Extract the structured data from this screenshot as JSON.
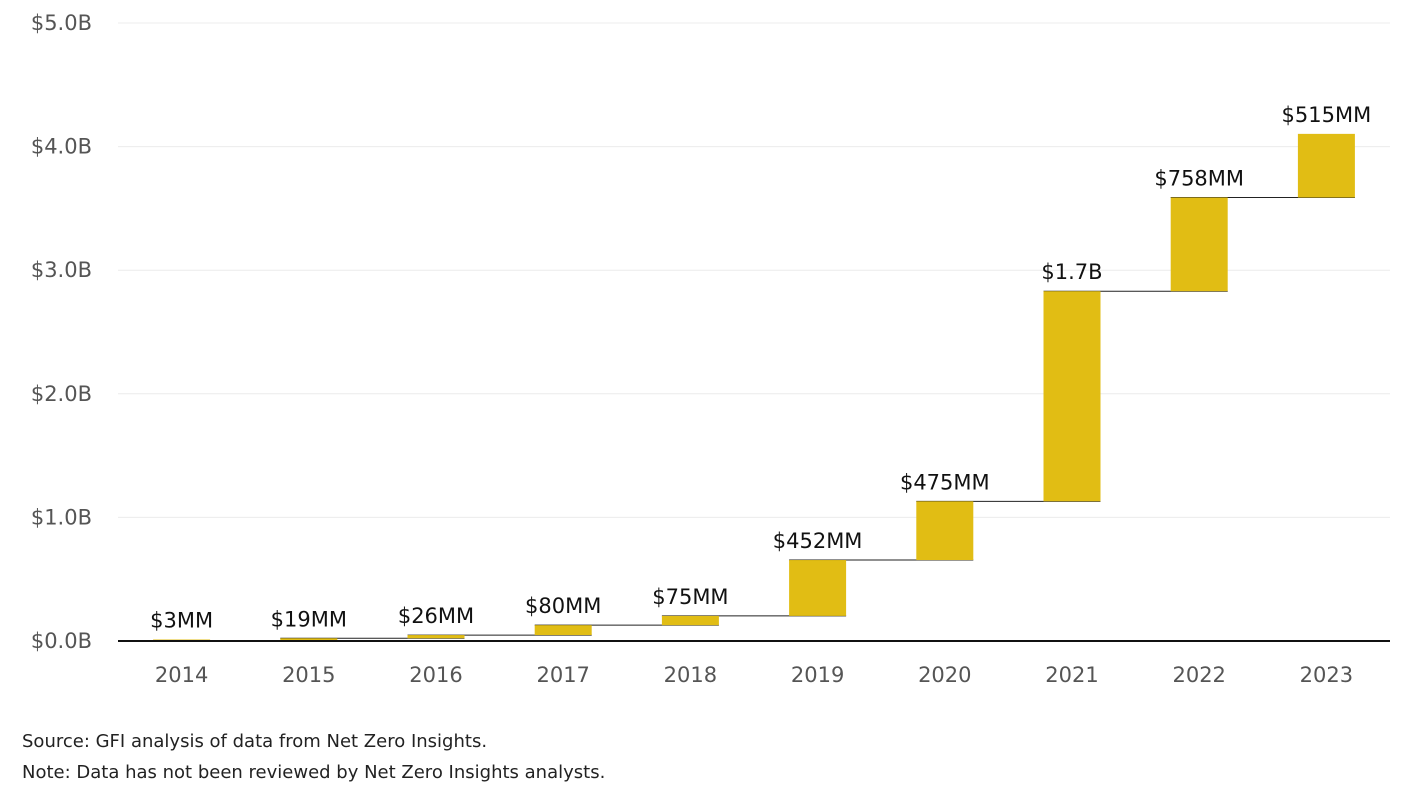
{
  "chart_data": {
    "type": "bar",
    "subtype": "waterfall",
    "categories": [
      "2014",
      "2015",
      "2016",
      "2017",
      "2018",
      "2019",
      "2020",
      "2021",
      "2022",
      "2023"
    ],
    "values": [
      3,
      19,
      26,
      80,
      75,
      452,
      475,
      1700,
      758,
      515
    ],
    "value_unit": "USD millions",
    "data_labels": [
      "$3MM",
      "$19MM",
      "$26MM",
      "$80MM",
      "$75MM",
      "$452MM",
      "$475MM",
      "$1.7B",
      "$758MM",
      "$515MM"
    ],
    "y_ticks": [
      0,
      1000,
      2000,
      3000,
      4000,
      5000
    ],
    "y_tick_labels": [
      "$0.0B",
      "$1.0B",
      "$2.0B",
      "$3.0B",
      "$4.0B",
      "$5.0B"
    ],
    "ylim": [
      0,
      5000
    ],
    "title": "",
    "xlabel": "",
    "ylabel": "",
    "grid": true,
    "legend": "none",
    "bar_color": "#E1BD14"
  },
  "notes": {
    "source": "Source: GFI analysis of data from Net Zero Insights.",
    "note": "Note: Data has not been reviewed by Net Zero Insights analysts."
  }
}
